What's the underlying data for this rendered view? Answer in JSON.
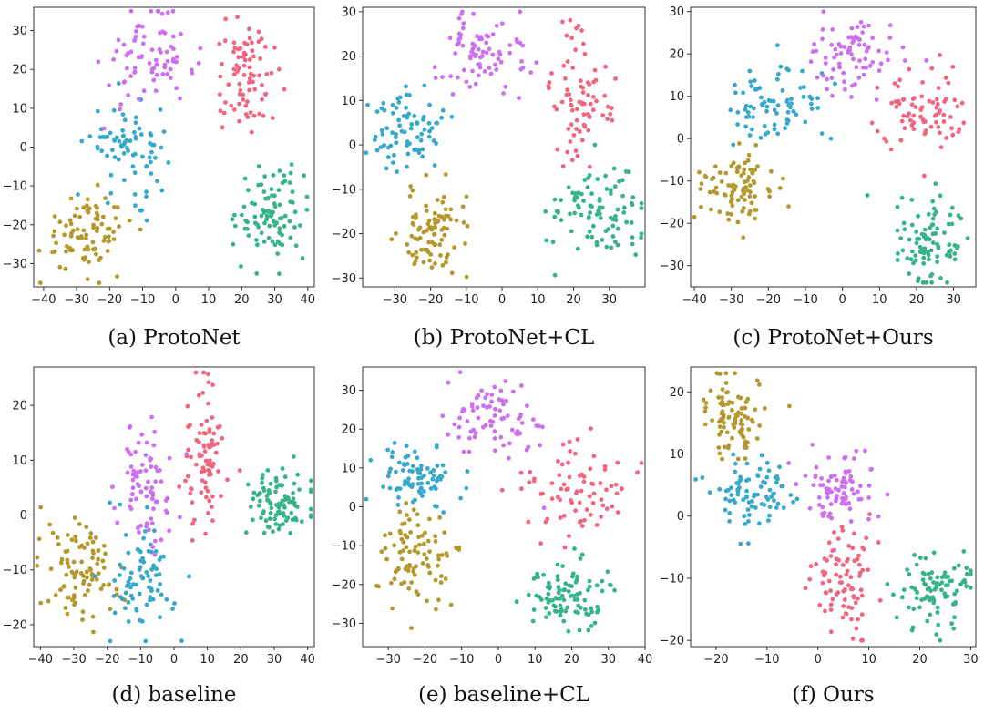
{
  "figure": {
    "description_colors": {
      "olive": "#b3982e",
      "blue": "#36a8c9",
      "purple": "#cc70f0",
      "pink": "#f06681",
      "green": "#36b38b"
    }
  },
  "chart_data": [
    {
      "type": "scatter",
      "caption": "(a) ProtoNet",
      "xlim": [
        -43,
        42
      ],
      "ylim": [
        -36,
        36
      ],
      "xticks": [
        -40,
        -30,
        -20,
        -10,
        0,
        10,
        20,
        30,
        40
      ],
      "yticks": [
        -30,
        -20,
        -10,
        0,
        10,
        20,
        30
      ],
      "series": [
        {
          "name": "olive",
          "color": "#b3982e",
          "center": [
            -27,
            -22
          ],
          "spread": [
            7,
            5
          ],
          "count": 90
        },
        {
          "name": "blue",
          "color": "#36a8c9",
          "center": [
            -14,
            0
          ],
          "spread": [
            6,
            6
          ],
          "count": 80
        },
        {
          "name": "purple",
          "color": "#cc70f0",
          "center": [
            -8,
            22
          ],
          "spread": [
            7,
            6
          ],
          "count": 80
        },
        {
          "name": "pink",
          "color": "#f06681",
          "center": [
            22,
            18
          ],
          "spread": [
            5,
            7
          ],
          "count": 80
        },
        {
          "name": "green",
          "color": "#36b38b",
          "center": [
            29,
            -17
          ],
          "spread": [
            5,
            6
          ],
          "count": 95
        }
      ]
    },
    {
      "type": "scatter",
      "caption": "(b) ProtoNet+CL",
      "xlim": [
        -39,
        40
      ],
      "ylim": [
        -32,
        31
      ],
      "xticks": [
        -30,
        -20,
        -10,
        0,
        10,
        20,
        30
      ],
      "yticks": [
        -30,
        -20,
        -10,
        0,
        10,
        20,
        30
      ],
      "series": [
        {
          "name": "olive",
          "color": "#b3982e",
          "center": [
            -19,
            -20
          ],
          "spread": [
            5,
            5
          ],
          "count": 90
        },
        {
          "name": "blue",
          "color": "#36a8c9",
          "center": [
            -26,
            3
          ],
          "spread": [
            5,
            5
          ],
          "count": 80
        },
        {
          "name": "purple",
          "color": "#cc70f0",
          "center": [
            -5,
            21
          ],
          "spread": [
            6,
            5
          ],
          "count": 80
        },
        {
          "name": "pink",
          "color": "#f06681",
          "center": [
            22,
            10
          ],
          "spread": [
            4,
            8
          ],
          "count": 80
        },
        {
          "name": "green",
          "color": "#36b38b",
          "center": [
            26,
            -16
          ],
          "spread": [
            7,
            5
          ],
          "count": 95
        }
      ]
    },
    {
      "type": "scatter",
      "caption": "(c) ProtoNet+Ours",
      "xlim": [
        -41,
        36
      ],
      "ylim": [
        -35,
        31
      ],
      "xticks": [
        -40,
        -30,
        -20,
        -10,
        0,
        10,
        20,
        30
      ],
      "yticks": [
        -30,
        -20,
        -10,
        0,
        10,
        20,
        30
      ],
      "series": [
        {
          "name": "olive",
          "color": "#b3982e",
          "center": [
            -29,
            -12
          ],
          "spread": [
            5,
            4
          ],
          "count": 90
        },
        {
          "name": "blue",
          "color": "#36a8c9",
          "center": [
            -19,
            7
          ],
          "spread": [
            6,
            5
          ],
          "count": 80
        },
        {
          "name": "purple",
          "color": "#cc70f0",
          "center": [
            2,
            20
          ],
          "spread": [
            7,
            5
          ],
          "count": 80
        },
        {
          "name": "pink",
          "color": "#f06681",
          "center": [
            22,
            5
          ],
          "spread": [
            6,
            6
          ],
          "count": 80
        },
        {
          "name": "green",
          "color": "#36b38b",
          "center": [
            23,
            -24
          ],
          "spread": [
            5,
            6
          ],
          "count": 95
        }
      ]
    },
    {
      "type": "scatter",
      "caption": "(d) baseline",
      "xlim": [
        -42,
        42
      ],
      "ylim": [
        -24,
        27
      ],
      "xticks": [
        -40,
        -30,
        -20,
        -10,
        0,
        10,
        20,
        30,
        40
      ],
      "yticks": [
        -20,
        -10,
        0,
        10,
        20
      ],
      "series": [
        {
          "name": "olive",
          "color": "#b3982e",
          "center": [
            -28,
            -11
          ],
          "spread": [
            6,
            5
          ],
          "count": 95
        },
        {
          "name": "blue",
          "color": "#36a8c9",
          "center": [
            -10,
            -11
          ],
          "spread": [
            5,
            5
          ],
          "count": 80
        },
        {
          "name": "purple",
          "color": "#cc70f0",
          "center": [
            -8,
            6
          ],
          "spread": [
            4,
            6
          ],
          "count": 80
        },
        {
          "name": "pink",
          "color": "#f06681",
          "center": [
            9,
            11
          ],
          "spread": [
            3,
            7
          ],
          "count": 85
        },
        {
          "name": "green",
          "color": "#36b38b",
          "center": [
            32,
            2
          ],
          "spread": [
            5,
            3
          ],
          "count": 95
        }
      ]
    },
    {
      "type": "scatter",
      "caption": "(e) baseline+CL",
      "xlim": [
        -37,
        40
      ],
      "ylim": [
        -36,
        36
      ],
      "xticks": [
        -30,
        -20,
        -10,
        0,
        10,
        20,
        30,
        40
      ],
      "yticks": [
        -30,
        -20,
        -10,
        0,
        10,
        20,
        30
      ],
      "series": [
        {
          "name": "olive",
          "color": "#b3982e",
          "center": [
            -22,
            -13
          ],
          "spread": [
            5,
            7
          ],
          "count": 90
        },
        {
          "name": "blue",
          "color": "#36a8c9",
          "center": [
            -22,
            8
          ],
          "spread": [
            6,
            4
          ],
          "count": 80
        },
        {
          "name": "purple",
          "color": "#cc70f0",
          "center": [
            -1,
            22
          ],
          "spread": [
            7,
            5
          ],
          "count": 80
        },
        {
          "name": "pink",
          "color": "#f06681",
          "center": [
            20,
            4
          ],
          "spread": [
            8,
            7
          ],
          "count": 80
        },
        {
          "name": "green",
          "color": "#36b38b",
          "center": [
            19,
            -23
          ],
          "spread": [
            6,
            5
          ],
          "count": 95
        }
      ]
    },
    {
      "type": "scatter",
      "caption": "(f) Ours",
      "xlim": [
        -25,
        31
      ],
      "ylim": [
        -21,
        24
      ],
      "xticks": [
        -20,
        -10,
        0,
        10,
        20,
        30
      ],
      "yticks": [
        -20,
        -10,
        0,
        10,
        20
      ],
      "series": [
        {
          "name": "olive",
          "color": "#b3982e",
          "center": [
            -17,
            16
          ],
          "spread": [
            3,
            3
          ],
          "count": 90
        },
        {
          "name": "blue",
          "color": "#36a8c9",
          "center": [
            -13,
            4
          ],
          "spread": [
            4,
            3
          ],
          "count": 85
        },
        {
          "name": "purple",
          "color": "#cc70f0",
          "center": [
            4,
            5
          ],
          "spread": [
            4,
            3
          ],
          "count": 80
        },
        {
          "name": "pink",
          "color": "#f06681",
          "center": [
            5,
            -11
          ],
          "spread": [
            3,
            4
          ],
          "count": 85
        },
        {
          "name": "green",
          "color": "#36b38b",
          "center": [
            23,
            -12
          ],
          "spread": [
            4,
            3
          ],
          "count": 95
        }
      ]
    }
  ]
}
